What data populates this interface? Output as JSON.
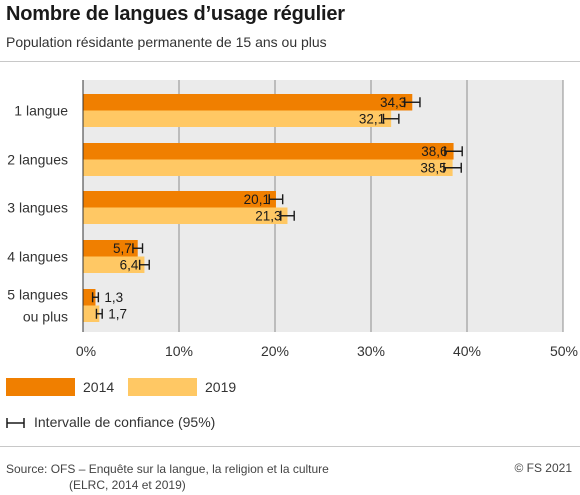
{
  "title": "Nombre de langues d’usage régulier",
  "subtitle": "Population résidante permanente de 15 ans ou plus",
  "legend": {
    "series_2014": "2014",
    "series_2019": "2019",
    "ci_label": "Intervalle de confiance (95%)"
  },
  "colors": {
    "s2014": "#f07f00",
    "s2019": "#ffc864",
    "plot_bg": "#ebebeb",
    "grid": "#8c8c8c"
  },
  "source": {
    "line1": "Source: OFS – Enquête sur la langue, la religion et la culture",
    "line2": "(ELRC, 2014 et 2019)"
  },
  "copyright": "© FS 2021",
  "chart_data": {
    "type": "bar",
    "orientation": "horizontal",
    "title": "Nombre de langues d’usage régulier",
    "subtitle": "Population résidante permanente de 15 ans ou plus",
    "categories": [
      [
        "1 langue"
      ],
      [
        "2 langues"
      ],
      [
        "3 langues"
      ],
      [
        "4 langues"
      ],
      [
        "5 langues",
        "ou plus"
      ]
    ],
    "series": [
      {
        "name": "2014",
        "values": [
          34.3,
          38.6,
          20.1,
          5.7,
          1.3
        ],
        "ci": [
          [
            33.5,
            35.1
          ],
          [
            37.7,
            39.5
          ],
          [
            19.4,
            20.8
          ],
          [
            5.2,
            6.2
          ],
          [
            1.0,
            1.6
          ]
        ]
      },
      {
        "name": "2019",
        "values": [
          32.1,
          38.5,
          21.3,
          6.4,
          1.7
        ],
        "ci": [
          [
            31.3,
            32.9
          ],
          [
            37.6,
            39.4
          ],
          [
            20.6,
            22.0
          ],
          [
            5.9,
            6.9
          ],
          [
            1.4,
            2.0
          ]
        ]
      }
    ],
    "value_labels": [
      [
        "34,3",
        "38,6",
        "20,1",
        "5,7",
        "1,3"
      ],
      [
        "32,1",
        "38,5",
        "21,3",
        "6,4",
        "1,7"
      ]
    ],
    "xlim": [
      0,
      50
    ],
    "xticks": [
      0,
      10,
      20,
      30,
      40,
      50
    ],
    "xtick_labels": [
      "0%",
      "10%",
      "20%",
      "30%",
      "40%",
      "50%"
    ],
    "grid": "vertical",
    "legend_position": "bottom-left"
  }
}
